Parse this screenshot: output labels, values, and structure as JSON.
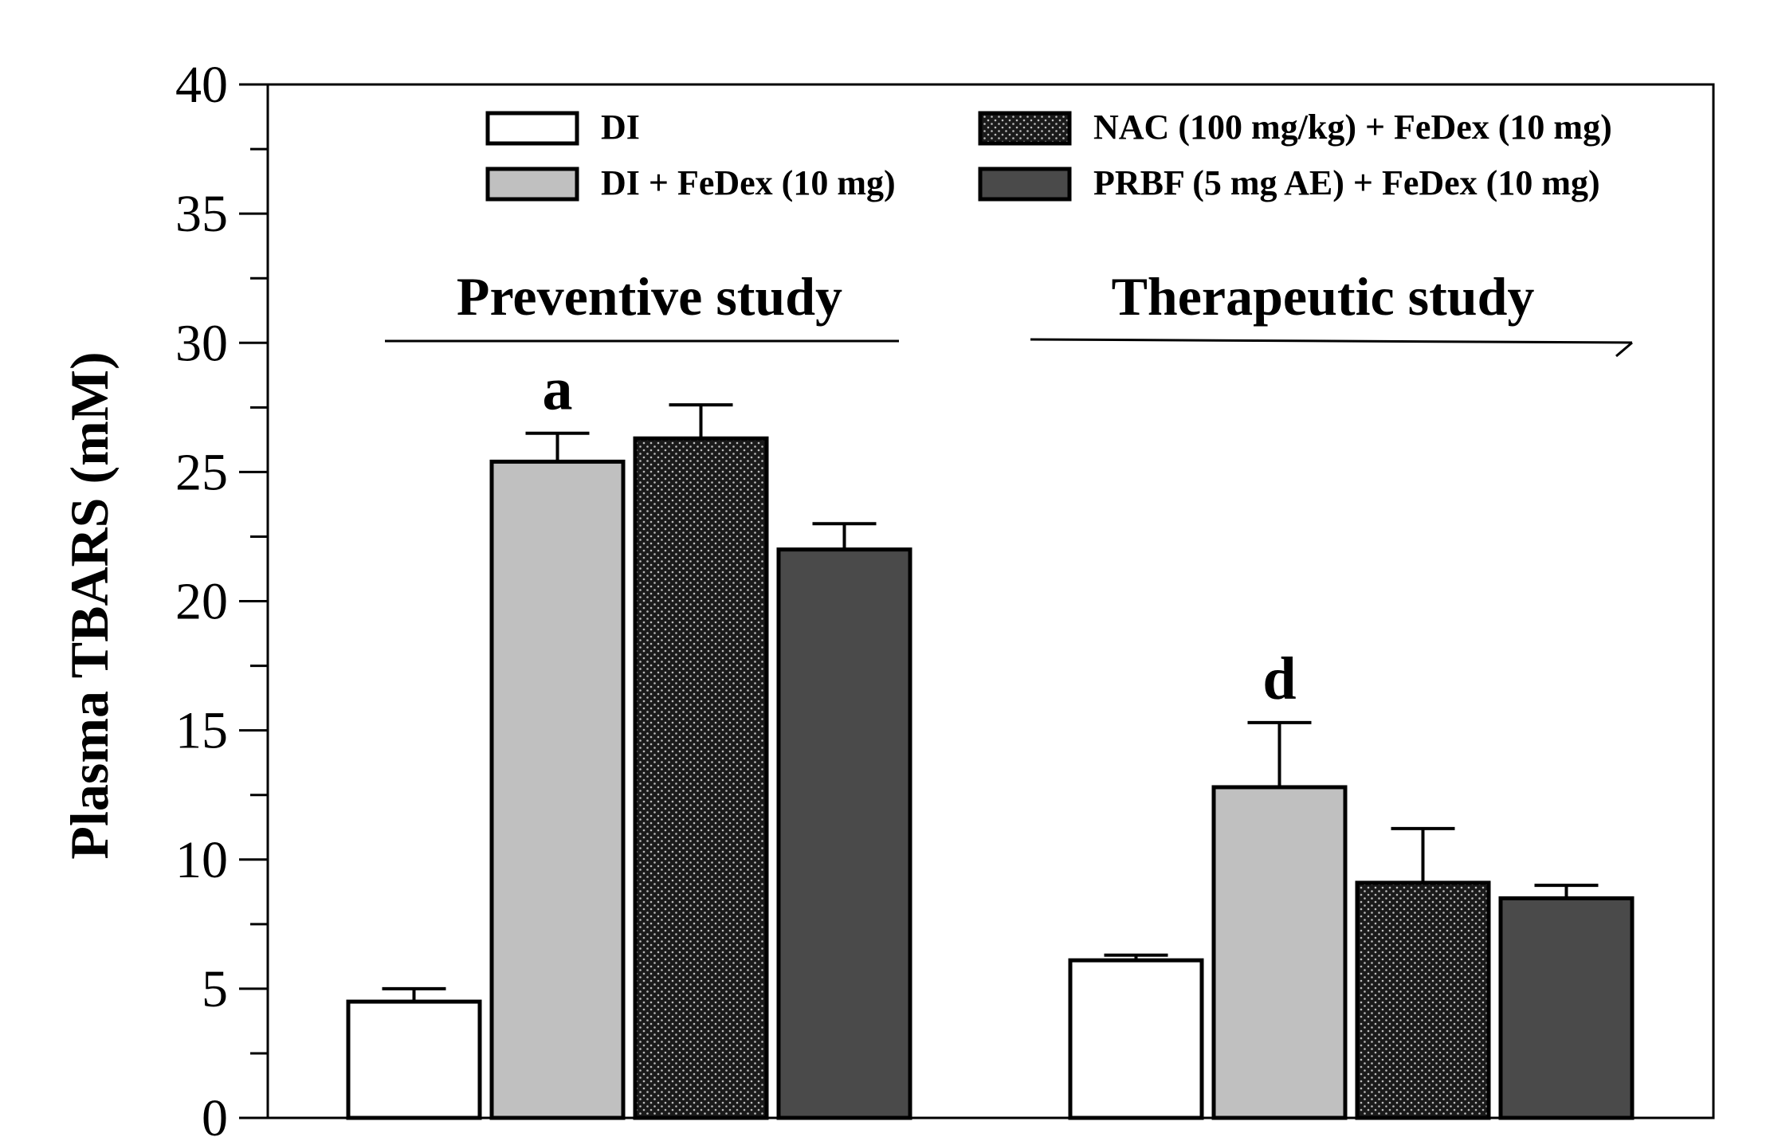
{
  "chart_data": {
    "type": "bar",
    "title": "",
    "xlabel": "",
    "ylabel": "Plasma TBARS (mM)",
    "ylim": [
      0,
      40
    ],
    "yticks": [
      "0",
      "5",
      "10",
      "15",
      "20",
      "25",
      "30",
      "35",
      "40"
    ],
    "grid": false,
    "legend_position": "top",
    "categories": [
      "Preventive study",
      "Therapeutic study"
    ],
    "series": [
      {
        "name": "DI",
        "pattern": "white",
        "color": "#ffffff",
        "values": [
          4.5,
          6.1
        ],
        "errors": [
          0.5,
          0.2
        ]
      },
      {
        "name": "DI + FeDex (10 mg)",
        "pattern": "light-gray",
        "color": "#c0c0c0",
        "values": [
          25.4,
          12.8
        ],
        "errors": [
          1.1,
          2.5
        ]
      },
      {
        "name": "NAC (100 mg/kg) + FeDex (10 mg)",
        "pattern": "dotted-dark",
        "color": "#1f1f1f",
        "values": [
          26.3,
          9.1
        ],
        "errors": [
          1.3,
          2.1
        ]
      },
      {
        "name": "PRBF (5 mg AE) + FeDex (10 mg)",
        "pattern": "dark-gray",
        "color": "#4a4a4a",
        "values": [
          22.0,
          8.5
        ],
        "errors": [
          1.0,
          0.5
        ]
      }
    ],
    "annotations": [
      {
        "text": "a",
        "category": "Preventive study",
        "series": "DI + FeDex (10 mg)"
      },
      {
        "text": "d",
        "category": "Therapeutic study",
        "series": "DI + FeDex (10 mg)"
      }
    ]
  }
}
